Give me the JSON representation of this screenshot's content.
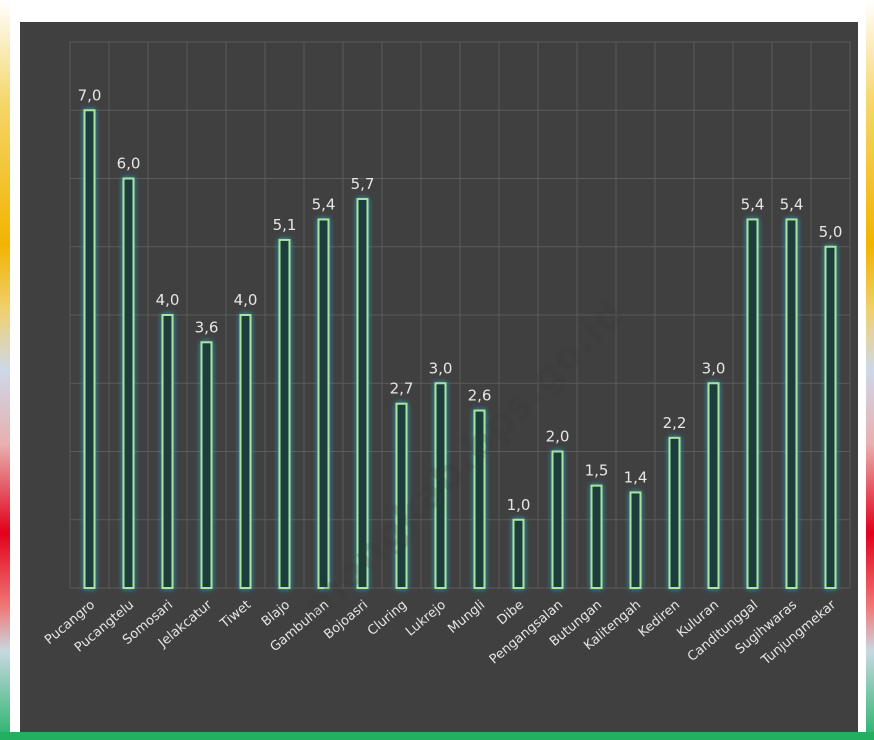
{
  "colors": {
    "background": "#404040",
    "bar_fill": "#1f3d3a",
    "bar_outline": "#a8e6a0",
    "bar_glow": "#2aa7c9",
    "label_text": "#e6e6e6",
    "grid": "#5a5a5a"
  },
  "watermark": "mongkab.bps.go.id",
  "chart_data": {
    "type": "bar",
    "title": "",
    "xlabel": "",
    "ylabel": "",
    "ylim": [
      0,
      8
    ],
    "grid": true,
    "categories": [
      "Pucangro",
      "Pucangtelu",
      "Somosari",
      "Jelakcatur",
      "Tiwet",
      "Blajo",
      "Gambuhan",
      "Bojoasri",
      "Cluring",
      "Lukrejo",
      "Mungli",
      "Dibe",
      "Pengangsalan",
      "Butungan",
      "Kalitengah",
      "Kediren",
      "Kuluran",
      "Canditunggal",
      "Sugihwaras",
      "Tunjungmekar"
    ],
    "values": [
      7.0,
      6.0,
      4.0,
      3.6,
      4.0,
      5.1,
      5.4,
      5.7,
      2.7,
      3.0,
      2.6,
      1.0,
      2.0,
      1.5,
      1.4,
      2.2,
      3.0,
      5.4,
      5.4,
      5.0
    ],
    "value_labels": [
      "7,0",
      "6,0",
      "4,0",
      "3,6",
      "4,0",
      "5,1",
      "5,4",
      "5,7",
      "2,7",
      "3,0",
      "2,6",
      "1,0",
      "2,0",
      "1,5",
      "1,4",
      "2,2",
      "3,0",
      "5,4",
      "5,4",
      "5,0"
    ]
  }
}
